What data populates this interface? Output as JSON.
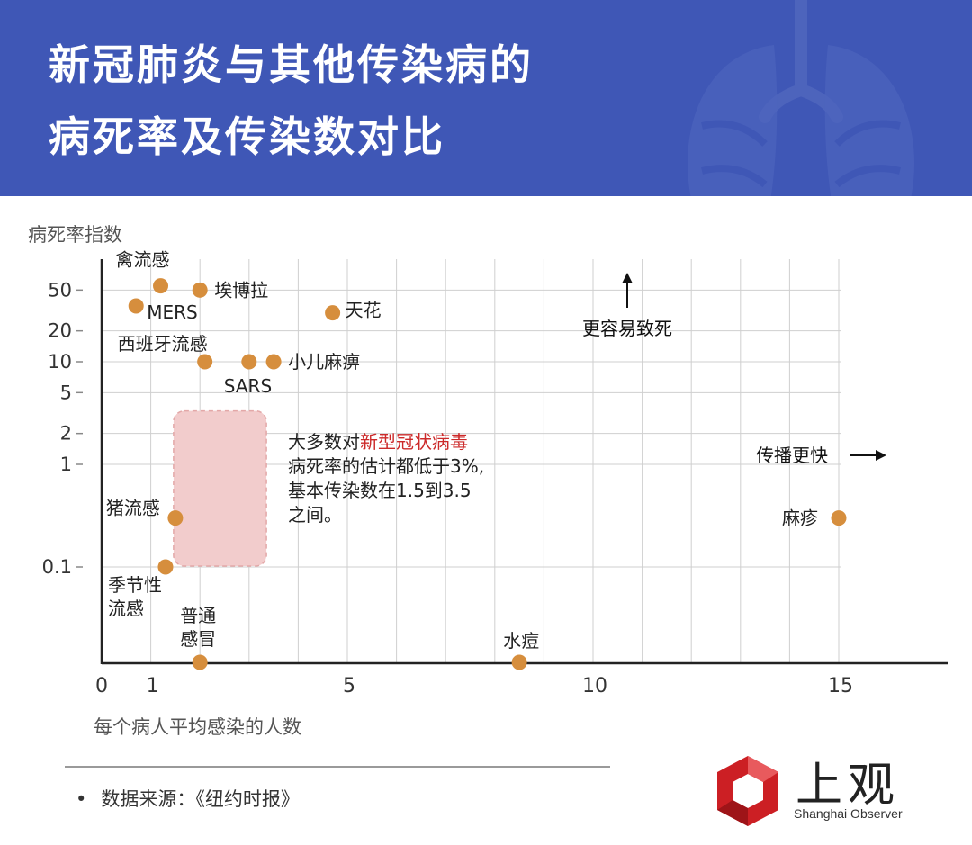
{
  "header": {
    "title_line1": "新冠肺炎与其他传染病的",
    "title_line2": "病死率及传染数对比",
    "bg_color": "#3f57b6"
  },
  "chart_data": {
    "type": "scatter",
    "ylabel": "病死率指数",
    "xlabel": "每个病人平均感染的人数",
    "y_scale": "log",
    "x_ticks": [
      0,
      1,
      5,
      10,
      15
    ],
    "y_ticks": [
      0.1,
      1,
      2,
      5,
      10,
      20,
      50
    ],
    "y_tick_labels": [
      "0.1",
      "1",
      "2",
      "5",
      "10",
      "20",
      "50"
    ],
    "points": [
      {
        "label": "禽流感",
        "x": 1.2,
        "y": 55
      },
      {
        "label": "埃博拉",
        "x": 2.0,
        "y": 50
      },
      {
        "label": "MERS",
        "x": 0.7,
        "y": 35
      },
      {
        "label": "天花",
        "x": 4.7,
        "y": 30
      },
      {
        "label": "西班牙流感",
        "x": 2.1,
        "y": 10
      },
      {
        "label": "SARS",
        "x": 3.0,
        "y": 10
      },
      {
        "label": "小儿麻痹",
        "x": 3.5,
        "y": 10
      },
      {
        "label": "猪流感",
        "x": 1.5,
        "y": 0.3
      },
      {
        "label": "季节性\n流感",
        "x": 1.3,
        "y": 0.1
      },
      {
        "label": "普通\n感冒",
        "x": 2.0,
        "y": 0.0
      },
      {
        "label": "水痘",
        "x": 8.5,
        "y": 0.0
      },
      {
        "label": "麻疹",
        "x": 15.0,
        "y": 0.3
      }
    ],
    "covid_region": {
      "x_min": 1.5,
      "x_max": 3.5,
      "y_max": 3
    },
    "annotation_lines": [
      [
        {
          "text": "大多数对",
          "highlight": false
        },
        {
          "text": "新型冠状病毒",
          "highlight": true
        }
      ],
      [
        {
          "text": "病死率的估计都低于3%,",
          "highlight": false
        }
      ],
      [
        {
          "text": "基本传染数在1.5到3.5",
          "highlight": false
        }
      ],
      [
        {
          "text": "之间。",
          "highlight": false
        }
      ]
    ],
    "arrow_up_label": "更容易致死",
    "arrow_right_label": "传播更快",
    "colors": {
      "point": "#d68e3d",
      "covid_box": "#f2cccc",
      "highlight_text": "#cc2a2a",
      "grid": "#cfcfcf",
      "axis": "#222222"
    }
  },
  "source": {
    "bullet": "•",
    "text": "数据来源：《纽约时报》"
  },
  "logo": {
    "name_cn": "上观",
    "name_en": "Shanghai Observer",
    "color": "#cc1f24"
  }
}
